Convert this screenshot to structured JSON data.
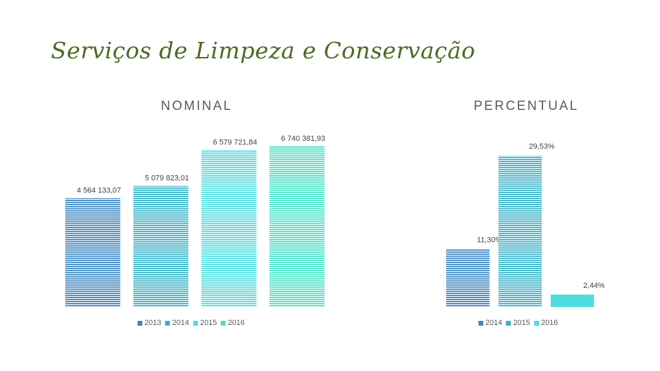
{
  "page": {
    "title": "Serviços de Limpeza e Conservação"
  },
  "colors": {
    "s2013": "#3e87c0",
    "s2014": "#39b4c9",
    "s2015": "#4fdde0",
    "s2016": "#45e3c6"
  },
  "chart_data": [
    {
      "type": "bar",
      "title": "NOMINAL",
      "categories": [
        "2013",
        "2014",
        "2015",
        "2016"
      ],
      "values": [
        4564133.07,
        5079823.01,
        6579721.84,
        6740381.93
      ],
      "data_labels": [
        "4 564 133,07",
        "5 079 823,01",
        "6 579 721,84",
        "6 740 381,93"
      ],
      "legend": [
        "2013",
        "2014",
        "2015",
        "2016"
      ],
      "ylim": [
        0,
        7000000
      ],
      "xlabel": "",
      "ylabel": "",
      "grid": false,
      "legend_position": "bottom"
    },
    {
      "type": "bar",
      "title": "PERCENTUAL",
      "categories": [
        "2014",
        "2015",
        "2016"
      ],
      "values": [
        11.3,
        29.53,
        2.44
      ],
      "data_labels": [
        "11,30%",
        "29,53%",
        "2,44%"
      ],
      "legend": [
        "2014",
        "2015",
        "2016"
      ],
      "ylim": [
        0,
        30
      ],
      "xlabel": "",
      "ylabel": "",
      "grid": false,
      "legend_position": "bottom"
    }
  ]
}
